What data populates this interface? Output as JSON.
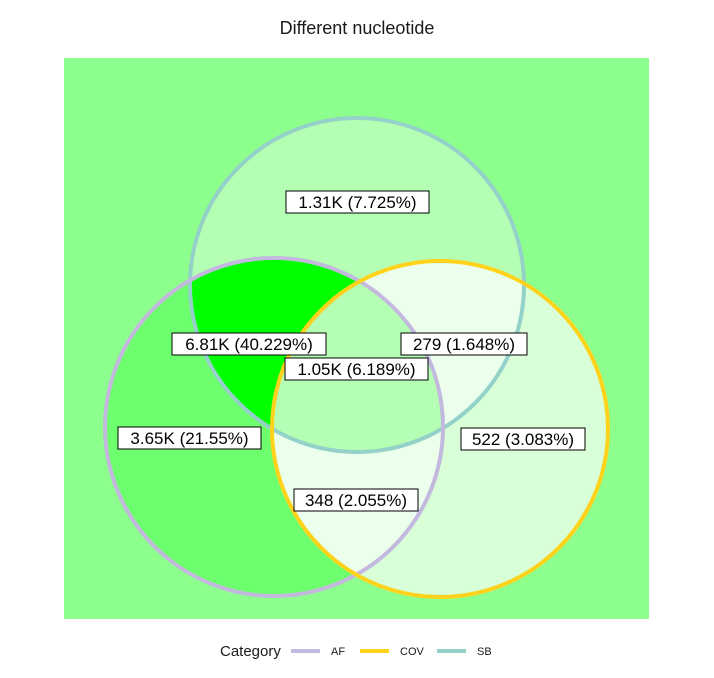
{
  "title": "Different nucleotide",
  "colors": {
    "background": "#8cff8c",
    "AF": "#c3b8de",
    "COV": "#ffd21c",
    "SB": "#94d1c8"
  },
  "sets": [
    {
      "name": "AF",
      "color": "#c3b8de"
    },
    {
      "name": "COV",
      "color": "#ffd21c"
    },
    {
      "name": "SB",
      "color": "#94d1c8"
    }
  ],
  "regions": [
    {
      "id": "SB_only",
      "sets": [
        "SB"
      ],
      "count": "1.31K",
      "percent": "7.725%",
      "label": "1.31K (7.725%)",
      "fill": "#b5ffb5"
    },
    {
      "id": "AF_SB",
      "sets": [
        "AF",
        "SB"
      ],
      "count": "6.81K",
      "percent": "40.229%",
      "label": "6.81K (40.229%)",
      "fill": "#00ff00"
    },
    {
      "id": "COV_SB",
      "sets": [
        "COV",
        "SB"
      ],
      "count": "279",
      "percent": "1.648%",
      "label": "279 (1.648%)",
      "fill": "#ecffec"
    },
    {
      "id": "AF_COV_SB",
      "sets": [
        "AF",
        "COV",
        "SB"
      ],
      "count": "1.05K",
      "percent": "6.189%",
      "label": "1.05K (6.189%)",
      "fill": "#b5ffb5"
    },
    {
      "id": "AF_only",
      "sets": [
        "AF"
      ],
      "count": "3.65K",
      "percent": "21.55%",
      "label": "3.65K (21.55%)",
      "fill": "#6dff6d"
    },
    {
      "id": "COV_only",
      "sets": [
        "COV"
      ],
      "count": "522",
      "percent": "3.083%",
      "label": "522 (3.083%)",
      "fill": "#d9ffd9"
    },
    {
      "id": "AF_COV",
      "sets": [
        "AF",
        "COV"
      ],
      "count": "348",
      "percent": "2.055%",
      "label": "348 (2.055%)",
      "fill": "#ecffec"
    }
  ],
  "legend": {
    "title": "Category",
    "items": [
      {
        "label": "AF",
        "color": "#c3b8de"
      },
      {
        "label": "COV",
        "color": "#ffd21c"
      },
      {
        "label": "SB",
        "color": "#94d1c8"
      }
    ]
  }
}
